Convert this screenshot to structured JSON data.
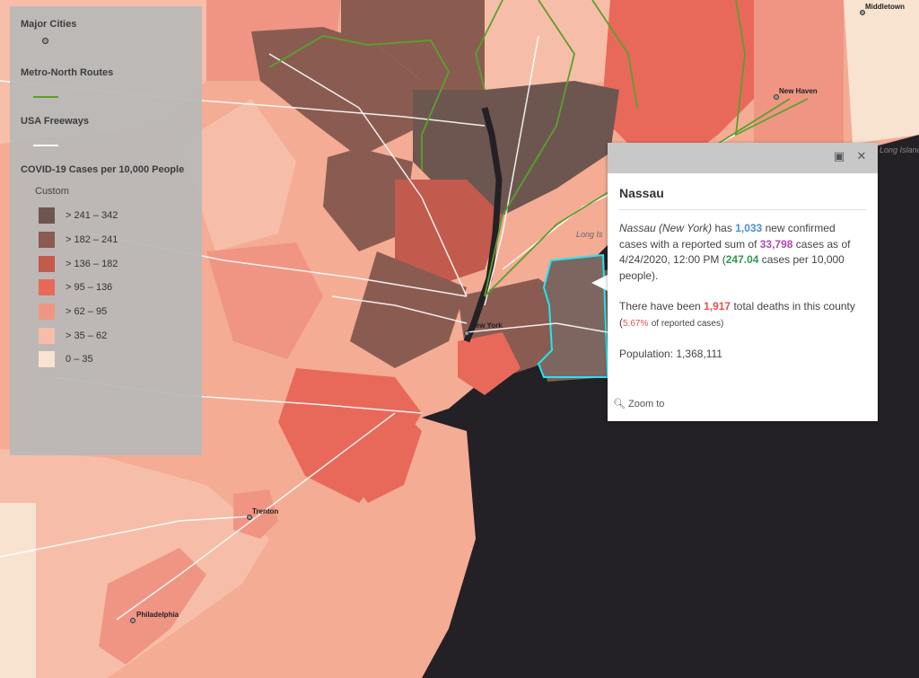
{
  "legend": {
    "cities_title": "Major Cities",
    "routes_title": "Metro-North Routes",
    "freeways_title": "USA Freeways",
    "cases_title": "COVID-19 Cases per 10,000 People",
    "custom_label": "Custom",
    "classes": [
      {
        "label": "> 241 – 342",
        "color": "#6e5650"
      },
      {
        "label": "> 182 – 241",
        "color": "#8a5c51"
      },
      {
        "label": "> 136 – 182",
        "color": "#c25a4d"
      },
      {
        "label": "> 95 – 136",
        "color": "#e8695a"
      },
      {
        "label": "> 62 – 95",
        "color": "#f09583"
      },
      {
        "label": "> 35 – 62",
        "color": "#f6bea8"
      },
      {
        "label": "0 – 35",
        "color": "#f7e3d0"
      }
    ],
    "route_color": "#5aa02c",
    "freeway_color": "#ffffff"
  },
  "cities": [
    {
      "name": "Middletown"
    },
    {
      "name": "New Haven"
    },
    {
      "name": "New York"
    },
    {
      "name": "Trenton"
    },
    {
      "name": "Philadelphia"
    }
  ],
  "map_labels": {
    "long_island_sound": "Long Island Sound",
    "long_is": "Long Is"
  },
  "popup": {
    "title": "Nassau",
    "county": "Nassau (New York)",
    "has": "has",
    "new_cases": "1,033",
    "t1": "new confirmed cases with a reported sum of",
    "total_cases": "33,798",
    "t2": "cases as of 4/24/2020, 12:00 PM (",
    "per_10k": "247.04",
    "t3": "cases per 10,000 people).",
    "t4": "There have been",
    "deaths": "1,917",
    "t5": "total deaths in this county (",
    "pct": "5.67%",
    "t6": "of reported cases)",
    "population": "Population: 1,368,111",
    "zoom": "Zoom to",
    "colors": {
      "new": "#4a8fd4",
      "total": "#b04ab0",
      "per10k": "#2e9a4e",
      "deaths": "#e8504a",
      "pct": "#e8504a"
    }
  }
}
